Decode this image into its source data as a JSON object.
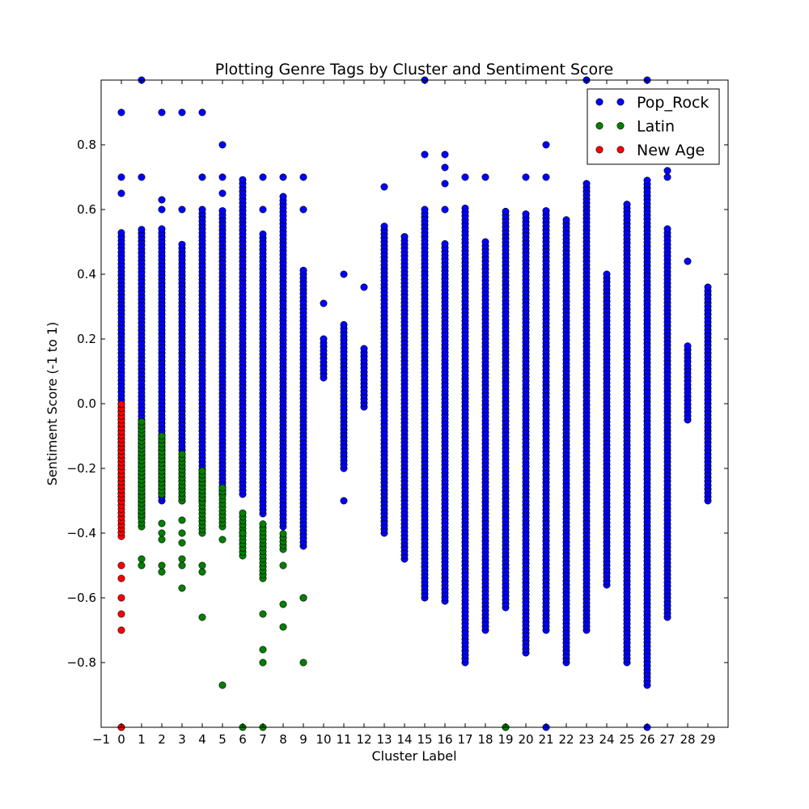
{
  "chart_data": {
    "type": "scatter",
    "title": "Plotting Genre Tags by Cluster and Sentiment Score",
    "xlabel": "Cluster Label",
    "ylabel": "Sentiment Score (-1 to 1)",
    "xlim": [
      -1,
      30
    ],
    "ylim": [
      -1,
      1
    ],
    "xticks": [
      -1,
      0,
      1,
      2,
      3,
      4,
      5,
      6,
      7,
      8,
      9,
      10,
      11,
      12,
      13,
      14,
      15,
      16,
      17,
      18,
      19,
      20,
      21,
      22,
      23,
      24,
      25,
      26,
      27,
      28,
      29
    ],
    "yticks": [
      -0.8,
      -0.6,
      -0.4,
      -0.2,
      0.0,
      0.2,
      0.4,
      0.6,
      0.8
    ],
    "grid": false,
    "legend_position": "top-right",
    "series": [
      {
        "name": "Pop_Rock",
        "color": "#0000ff",
        "columns": [
          {
            "x": 0,
            "min": -0.3,
            "max": 0.53,
            "extra": [
              0.65,
              0.7,
              0.9,
              -1.0
            ]
          },
          {
            "x": 1,
            "min": -0.35,
            "max": 0.54,
            "extra": [
              0.7,
              1.0
            ]
          },
          {
            "x": 2,
            "min": -0.3,
            "max": 0.54,
            "extra": [
              0.6,
              0.63,
              0.9
            ]
          },
          {
            "x": 3,
            "min": -0.3,
            "max": 0.5,
            "extra": [
              0.6,
              0.9
            ]
          },
          {
            "x": 4,
            "min": -0.3,
            "max": 0.6,
            "extra": [
              0.7,
              0.9
            ]
          },
          {
            "x": 5,
            "min": -0.28,
            "max": 0.6,
            "extra": [
              0.65,
              0.7,
              0.8
            ]
          },
          {
            "x": 6,
            "min": -0.28,
            "max": 0.7,
            "extra": []
          },
          {
            "x": 7,
            "min": -0.34,
            "max": 0.53,
            "extra": [
              0.6,
              0.7
            ]
          },
          {
            "x": 8,
            "min": -0.38,
            "max": 0.64,
            "extra": [
              0.7
            ]
          },
          {
            "x": 9,
            "min": -0.44,
            "max": 0.42,
            "extra": [
              0.6,
              0.7
            ]
          },
          {
            "x": 10,
            "min": 0.08,
            "max": 0.2,
            "extra": [
              0.31
            ]
          },
          {
            "x": 11,
            "min": -0.2,
            "max": 0.25,
            "extra": [
              0.4,
              -0.3
            ]
          },
          {
            "x": 12,
            "min": -0.01,
            "max": 0.17,
            "extra": [
              0.36
            ]
          },
          {
            "x": 13,
            "min": -0.4,
            "max": 0.55,
            "extra": [
              0.67
            ]
          },
          {
            "x": 14,
            "min": -0.48,
            "max": 0.52,
            "extra": []
          },
          {
            "x": 15,
            "min": -0.6,
            "max": 0.6,
            "extra": [
              0.77,
              1.0
            ]
          },
          {
            "x": 16,
            "min": -0.61,
            "max": 0.5,
            "extra": [
              0.6,
              0.68,
              0.73,
              0.77
            ]
          },
          {
            "x": 17,
            "min": -0.8,
            "max": 0.61,
            "extra": [
              0.7
            ]
          },
          {
            "x": 18,
            "min": -0.7,
            "max": 0.5,
            "extra": [
              0.7
            ]
          },
          {
            "x": 19,
            "min": -0.63,
            "max": 0.6,
            "extra": []
          },
          {
            "x": 20,
            "min": -0.77,
            "max": 0.59,
            "extra": [
              0.7
            ]
          },
          {
            "x": 21,
            "min": -0.7,
            "max": 0.6,
            "extra": [
              0.7,
              0.8,
              -1.0
            ]
          },
          {
            "x": 22,
            "min": -0.8,
            "max": 0.57,
            "extra": []
          },
          {
            "x": 23,
            "min": -0.7,
            "max": 0.68,
            "extra": [
              1.0
            ]
          },
          {
            "x": 24,
            "min": -0.56,
            "max": 0.4,
            "extra": []
          },
          {
            "x": 25,
            "min": -0.8,
            "max": 0.62,
            "extra": []
          },
          {
            "x": 26,
            "min": -0.87,
            "max": 0.7,
            "extra": [
              1.0,
              -1.0
            ]
          },
          {
            "x": 27,
            "min": -0.66,
            "max": 0.55,
            "extra": [
              0.7,
              0.72
            ]
          },
          {
            "x": 28,
            "min": -0.05,
            "max": 0.18,
            "extra": [
              0.44
            ]
          },
          {
            "x": 29,
            "min": -0.3,
            "max": 0.37,
            "extra": []
          }
        ]
      },
      {
        "name": "Latin",
        "color": "#008000",
        "columns": [
          {
            "x": 1,
            "min": -0.38,
            "max": -0.05,
            "extra": [
              -0.48,
              -0.5
            ]
          },
          {
            "x": 2,
            "min": -0.28,
            "max": -0.1,
            "extra": [
              -0.37,
              -0.4,
              -0.42,
              -0.5,
              -0.52
            ]
          },
          {
            "x": 3,
            "min": -0.3,
            "max": -0.15,
            "extra": [
              -0.36,
              -0.4,
              -0.43,
              -0.48,
              -0.5,
              -0.57
            ]
          },
          {
            "x": 4,
            "min": -0.4,
            "max": -0.2,
            "extra": [
              -0.5,
              -0.52,
              -0.66
            ]
          },
          {
            "x": 5,
            "min": -0.38,
            "max": -0.25,
            "extra": [
              -0.42,
              -0.87
            ]
          },
          {
            "x": 6,
            "min": -0.47,
            "max": -0.33,
            "extra": [
              -0.4,
              -1.0
            ]
          },
          {
            "x": 7,
            "min": -0.54,
            "max": -0.37,
            "extra": [
              -0.65,
              -0.76,
              -0.8,
              -1.0
            ]
          },
          {
            "x": 8,
            "min": -0.45,
            "max": -0.4,
            "extra": [
              -0.5,
              -0.62,
              -0.69
            ]
          },
          {
            "x": 9,
            "min": -0.6,
            "max": -0.6,
            "extra": [
              -0.8
            ]
          },
          {
            "x": 19,
            "min": -1.0,
            "max": -1.0,
            "extra": []
          }
        ]
      },
      {
        "name": "New Age",
        "color": "#ff0000",
        "columns": [
          {
            "x": 0,
            "min": -0.41,
            "max": 0.0,
            "extra": [
              -0.5,
              -0.54,
              -0.6,
              -0.65,
              -0.7,
              -1.0
            ]
          }
        ]
      }
    ]
  }
}
